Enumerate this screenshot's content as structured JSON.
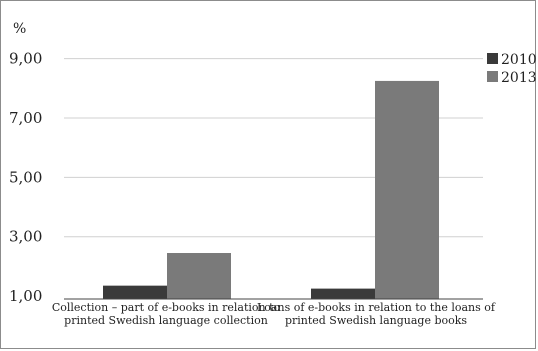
{
  "chart_data": {
    "type": "bar",
    "unit_label": "%",
    "categories": [
      "Collection – part of e-books in relation to printed Swedish language collection",
      "Loans of e-books in relation to the loans of printed Swedish language books"
    ],
    "series": [
      {
        "name": "2010",
        "color": "#3a3a3a",
        "values": [
          1.35,
          1.25
        ]
      },
      {
        "name": "2013",
        "color": "#7a7a7a",
        "values": [
          2.45,
          8.25
        ]
      }
    ],
    "ylim": [
      0.9,
      10
    ],
    "yticks": [
      "1,00",
      "3,00",
      "5,00",
      "7,00",
      "9,00"
    ],
    "ytick_values": [
      1,
      3,
      5,
      7,
      9
    ],
    "grid": true,
    "legend_position": "top-right"
  }
}
